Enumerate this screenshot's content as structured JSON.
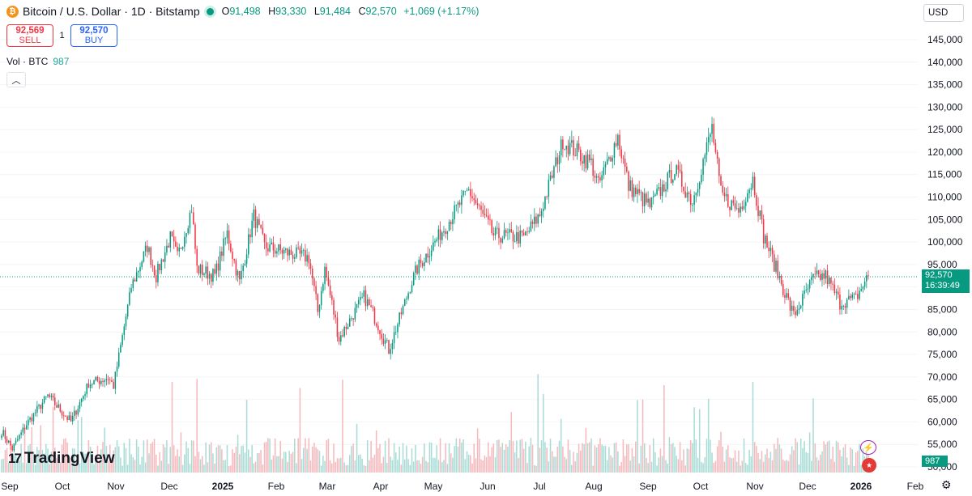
{
  "header": {
    "coin_icon": "₿",
    "symbol": "Bitcoin / U.S. Dollar · 1D · Bitstamp",
    "open_label": "O",
    "open": "91,498",
    "high_label": "H",
    "high": "93,330",
    "low_label": "L",
    "low": "91,484",
    "close_label": "C",
    "close": "92,570",
    "change": "+1,069 (+1.17%)"
  },
  "trade": {
    "sell_price": "92,569",
    "sell_label": "SELL",
    "spread": "1",
    "buy_price": "92,570",
    "buy_label": "BUY"
  },
  "volume": {
    "label": "Vol · BTC",
    "value": "987"
  },
  "collapse_icon": "chevron-up-icon",
  "currency": "USD",
  "logo": {
    "mark": "17",
    "text": "TradingView"
  },
  "price_badge": {
    "price": "92,570",
    "countdown": "16:39:49"
  },
  "volume_badge": "987",
  "colors": {
    "up": "#089981",
    "down": "#f23645",
    "up_vol": "#a9dcd6",
    "down_vol": "#f6b9bd",
    "accent": "#2962ff"
  },
  "chart_data": {
    "type": "candlestick",
    "y_ticks": [
      {
        "value": 50000,
        "label": "50,000"
      },
      {
        "value": 55000,
        "label": "55,000"
      },
      {
        "value": 60000,
        "label": "60,000"
      },
      {
        "value": 65000,
        "label": "65,000"
      },
      {
        "value": 70000,
        "label": "70,000"
      },
      {
        "value": 75000,
        "label": "75,000"
      },
      {
        "value": 80000,
        "label": "80,000"
      },
      {
        "value": 85000,
        "label": "85,000"
      },
      {
        "value": 90000,
        "label": "90,000"
      },
      {
        "value": 95000,
        "label": "95,000"
      },
      {
        "value": 100000,
        "label": "100,000"
      },
      {
        "value": 105000,
        "label": "105,000"
      },
      {
        "value": 110000,
        "label": "110,000"
      },
      {
        "value": 115000,
        "label": "115,000"
      },
      {
        "value": 120000,
        "label": "120,000"
      },
      {
        "value": 125000,
        "label": "125,000"
      },
      {
        "value": 130000,
        "label": "130,000"
      },
      {
        "value": 135000,
        "label": "135,000"
      },
      {
        "value": 140000,
        "label": "140,000"
      },
      {
        "value": 145000,
        "label": "145,000"
      }
    ],
    "x_labels": [
      "Sep",
      "Oct",
      "Nov",
      "Dec",
      "2025",
      "Feb",
      "Mar",
      "Apr",
      "May",
      "Jun",
      "Jul",
      "Aug",
      "Sep",
      "Oct",
      "Nov",
      "Dec",
      "2026",
      "Feb"
    ],
    "x_label_bold": [
      "2025",
      "2026"
    ],
    "last_price": 92570,
    "price_path": [
      [
        "2024-09-01",
        58000
      ],
      [
        "2024-09-07",
        54000
      ],
      [
        "2024-09-15",
        59500
      ],
      [
        "2024-09-27",
        65800
      ],
      [
        "2024-10-10",
        60000
      ],
      [
        "2024-10-20",
        68500
      ],
      [
        "2024-10-31",
        69800
      ],
      [
        "2024-11-03",
        68000
      ],
      [
        "2024-11-13",
        90000
      ],
      [
        "2024-11-22",
        99000
      ],
      [
        "2024-11-27",
        92500
      ],
      [
        "2024-12-05",
        101000
      ],
      [
        "2024-12-09",
        96500
      ],
      [
        "2024-12-17",
        107500
      ],
      [
        "2024-12-20",
        94000
      ],
      [
        "2024-12-30",
        92500
      ],
      [
        "2025-01-06",
        102000
      ],
      [
        "2025-01-13",
        91000
      ],
      [
        "2025-01-21",
        106000
      ],
      [
        "2025-01-27",
        99000
      ],
      [
        "2025-02-10",
        97500
      ],
      [
        "2025-02-21",
        96500
      ],
      [
        "2025-02-26",
        84500
      ],
      [
        "2025-03-02",
        94000
      ],
      [
        "2025-03-10",
        78500
      ],
      [
        "2025-03-24",
        88000
      ],
      [
        "2025-03-31",
        82500
      ],
      [
        "2025-04-07",
        76000
      ],
      [
        "2025-04-22",
        93500
      ],
      [
        "2025-05-08",
        103000
      ],
      [
        "2025-05-22",
        111500
      ],
      [
        "2025-06-05",
        101500
      ],
      [
        "2025-06-22",
        101000
      ],
      [
        "2025-07-01",
        106000
      ],
      [
        "2025-07-14",
        122500
      ],
      [
        "2025-07-30",
        117500
      ],
      [
        "2025-08-03",
        112500
      ],
      [
        "2025-08-14",
        123500
      ],
      [
        "2025-08-20",
        112500
      ],
      [
        "2025-09-01",
        108000
      ],
      [
        "2025-09-15",
        116000
      ],
      [
        "2025-09-25",
        109000
      ],
      [
        "2025-10-06",
        125500
      ],
      [
        "2025-10-11",
        110500
      ],
      [
        "2025-10-21",
        107000
      ],
      [
        "2025-10-29",
        114000
      ],
      [
        "2025-11-04",
        101500
      ],
      [
        "2025-11-21",
        83500
      ],
      [
        "2025-12-02",
        92000
      ],
      [
        "2025-12-09",
        92500
      ],
      [
        "2025-12-17",
        86500
      ],
      [
        "2025-12-26",
        87500
      ],
      [
        "2026-01-02",
        92570
      ]
    ],
    "date_range": [
      "2024-09-01",
      "2026-01-02"
    ],
    "ylim": [
      48000,
      150000
    ]
  }
}
